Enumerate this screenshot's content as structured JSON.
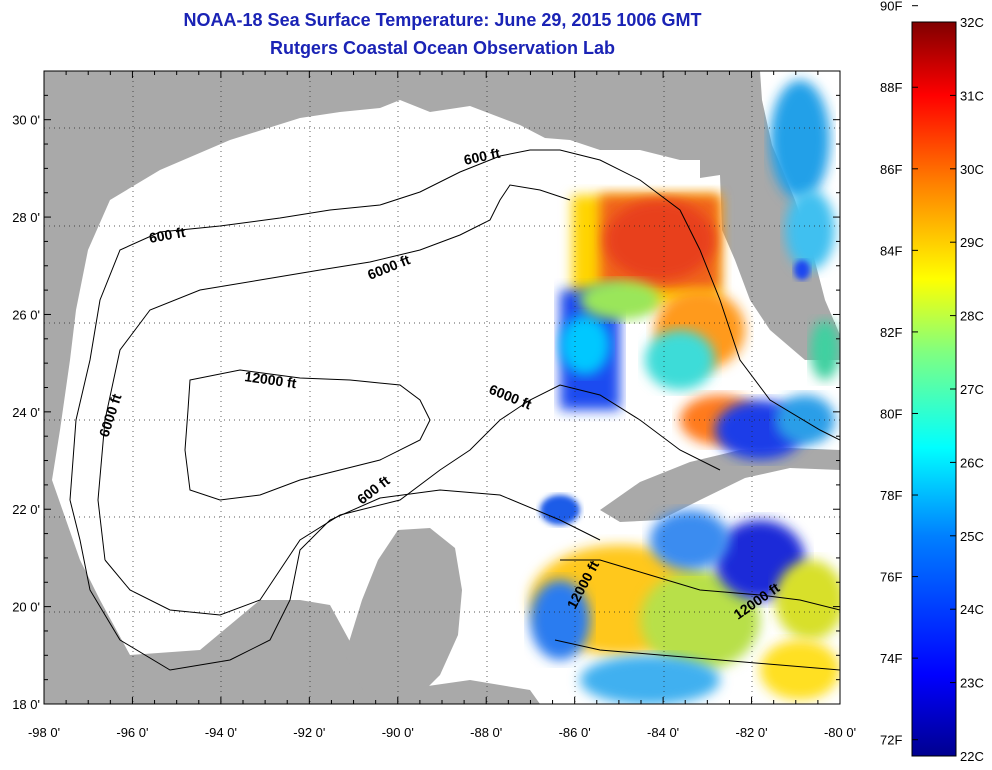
{
  "header": {
    "title": "NOAA-18 Sea Surface Temperature:  June 29, 2015 1006 GMT",
    "subtitle": "Rutgers Coastal Ocean Observation Lab"
  },
  "map": {
    "lat_range": [
      18,
      31
    ],
    "lon_range": [
      -98,
      -80
    ],
    "lat_ticks": [
      {
        "value": 18,
        "label": "18 0'"
      },
      {
        "value": 20,
        "label": "20 0'"
      },
      {
        "value": 22,
        "label": "22 0'"
      },
      {
        "value": 24,
        "label": "24 0'"
      },
      {
        "value": 26,
        "label": "26 0'"
      },
      {
        "value": 28,
        "label": "28 0'"
      },
      {
        "value": 30,
        "label": "30 0'"
      }
    ],
    "lon_ticks": [
      {
        "value": -98,
        "label": "-98 0'"
      },
      {
        "value": -96,
        "label": "-96 0'"
      },
      {
        "value": -94,
        "label": "-94 0'"
      },
      {
        "value": -92,
        "label": "-92 0'"
      },
      {
        "value": -90,
        "label": "-90 0'"
      },
      {
        "value": -88,
        "label": "-88 0'"
      },
      {
        "value": -86,
        "label": "-86 0'"
      },
      {
        "value": -84,
        "label": "-84 0'"
      },
      {
        "value": -82,
        "label": "-82 0'"
      },
      {
        "value": -80,
        "label": "-80 0'"
      }
    ],
    "contour_labels": [
      "600 ft",
      "600 ft",
      "600 ft",
      "6000 ft",
      "6000 ft",
      "6000 ft",
      "12000 ft",
      "12000 ft",
      "12000 ft"
    ],
    "land_color": "#a9a9a9",
    "ocean_color": "#ffffff"
  },
  "colorbar": {
    "fahrenheit_labels": [
      "90F",
      "88F",
      "86F",
      "84F",
      "82F",
      "80F",
      "78F",
      "76F",
      "74F",
      "72F"
    ],
    "celsius_labels": [
      "32C",
      "31C",
      "30C",
      "29C",
      "28C",
      "27C",
      "26C",
      "25C",
      "24C",
      "23C",
      "22C"
    ],
    "range_celsius": [
      22,
      32
    ],
    "colormap": [
      "#00008f",
      "#0000ff",
      "#0080ff",
      "#00ffff",
      "#80ff80",
      "#ffff00",
      "#ff8000",
      "#ff0000",
      "#800000"
    ]
  }
}
